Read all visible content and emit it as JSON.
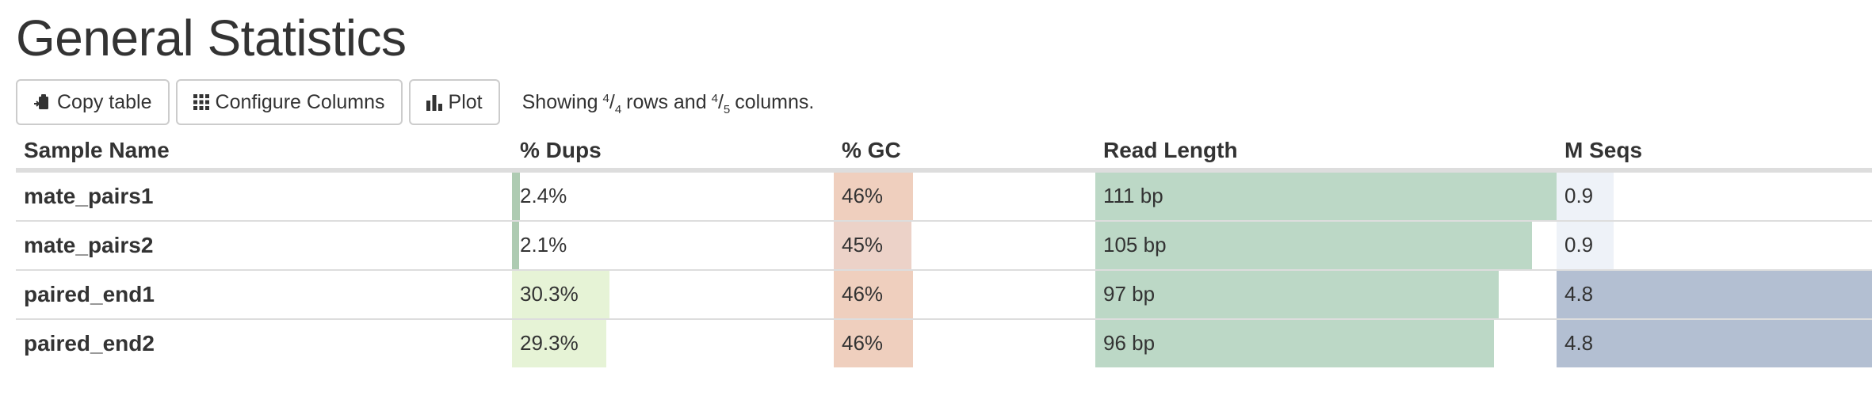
{
  "page": {
    "title": "General Statistics"
  },
  "toolbar": {
    "copy_label": "Copy table",
    "configure_label": "Configure Columns",
    "plot_label": "Plot",
    "status_prefix": "Showing",
    "rows_shown": "4",
    "rows_total": "4",
    "rows_word": "rows and",
    "cols_shown": "4",
    "cols_total": "5",
    "cols_word": "columns."
  },
  "table": {
    "headers": [
      "Sample Name",
      "% Dups",
      "% GC",
      "Read Length",
      "M Seqs"
    ],
    "colors": {
      "dups_low": "#aecbb2",
      "dups_high": "#e6f3d6",
      "gc": "#efcfbe",
      "gc_alt": "#ecd2c8",
      "read_length": "#bcd8c6",
      "mseqs_low": "#eef2f8",
      "mseqs_high": "#b3bfd2"
    },
    "rows": [
      {
        "sample": "mate_pairs1",
        "dups": "2.4%",
        "dups_pct": 2.4,
        "gc": "46%",
        "gc_pct": 46,
        "read_length": "111 bp",
        "read_length_bp": 111,
        "mseqs": "0.9",
        "mseqs_val": 0.9
      },
      {
        "sample": "mate_pairs2",
        "dups": "2.1%",
        "dups_pct": 2.1,
        "gc": "45%",
        "gc_pct": 45,
        "read_length": "105 bp",
        "read_length_bp": 105,
        "mseqs": "0.9",
        "mseqs_val": 0.9
      },
      {
        "sample": "paired_end1",
        "dups": "30.3%",
        "dups_pct": 30.3,
        "gc": "46%",
        "gc_pct": 46,
        "read_length": "97 bp",
        "read_length_bp": 97,
        "mseqs": "4.8",
        "mseqs_val": 4.8
      },
      {
        "sample": "paired_end2",
        "dups": "29.3%",
        "dups_pct": 29.3,
        "gc": "46%",
        "gc_pct": 46,
        "read_length": "96 bp",
        "read_length_bp": 96,
        "mseqs": "4.8",
        "mseqs_val": 4.8
      }
    ]
  }
}
